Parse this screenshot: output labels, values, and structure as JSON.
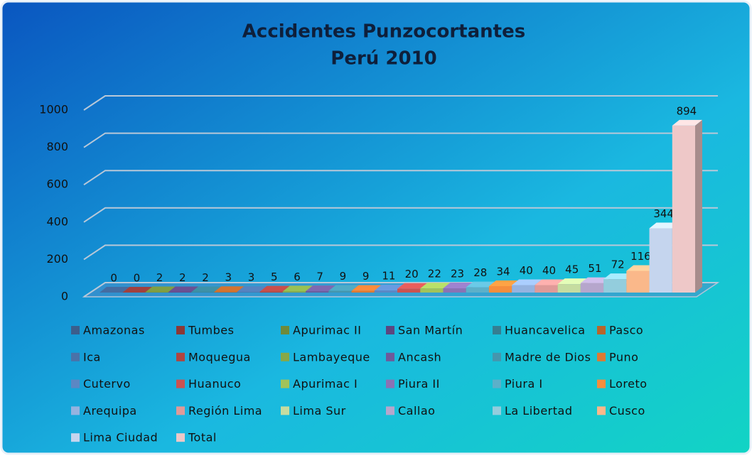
{
  "chart_data": {
    "type": "bar3d",
    "title": [
      "Accidentes Punzocortantes",
      "Perú 2010"
    ],
    "categories": [
      "Amazonas",
      "Tumbes",
      "Apurimac II",
      "San Martín",
      "Huancavelica",
      "Pasco",
      "Ica",
      "Moquegua",
      "Lambayeque",
      "Ancash",
      "Madre de Dios",
      "Puno",
      "Cutervo",
      "Huanuco",
      "Apurimac I",
      "Piura II",
      "Piura I",
      "Loreto",
      "Arequipa",
      "Región Lima",
      "Lima Sur",
      "Callao",
      "La Libertad",
      "Cusco",
      "Lima Ciudad",
      "Total"
    ],
    "values": [
      0,
      0,
      2,
      2,
      2,
      3,
      3,
      5,
      6,
      7,
      9,
      9,
      11,
      20,
      22,
      23,
      28,
      34,
      40,
      40,
      45,
      51,
      72,
      116,
      344,
      894
    ],
    "colors": [
      "#3b5e8c",
      "#8c3836",
      "#6f8a3a",
      "#5c4680",
      "#357e91",
      "#b8652a",
      "#4a72a8",
      "#b04440",
      "#86a848",
      "#6e5a9a",
      "#4596ad",
      "#dd7a33",
      "#5b87c4",
      "#cc5250",
      "#a2c35a",
      "#8a72b4",
      "#5cb0c9",
      "#f68e3c",
      "#95b3e0",
      "#e09a98",
      "#c6dca0",
      "#b6a6cc",
      "#93cddd",
      "#fab88a",
      "#c5d5ee",
      "#eec8c8"
    ],
    "ylim": [
      0,
      1000
    ],
    "yticks": [
      0,
      200,
      400,
      600,
      800,
      1000
    ],
    "grid": true
  }
}
